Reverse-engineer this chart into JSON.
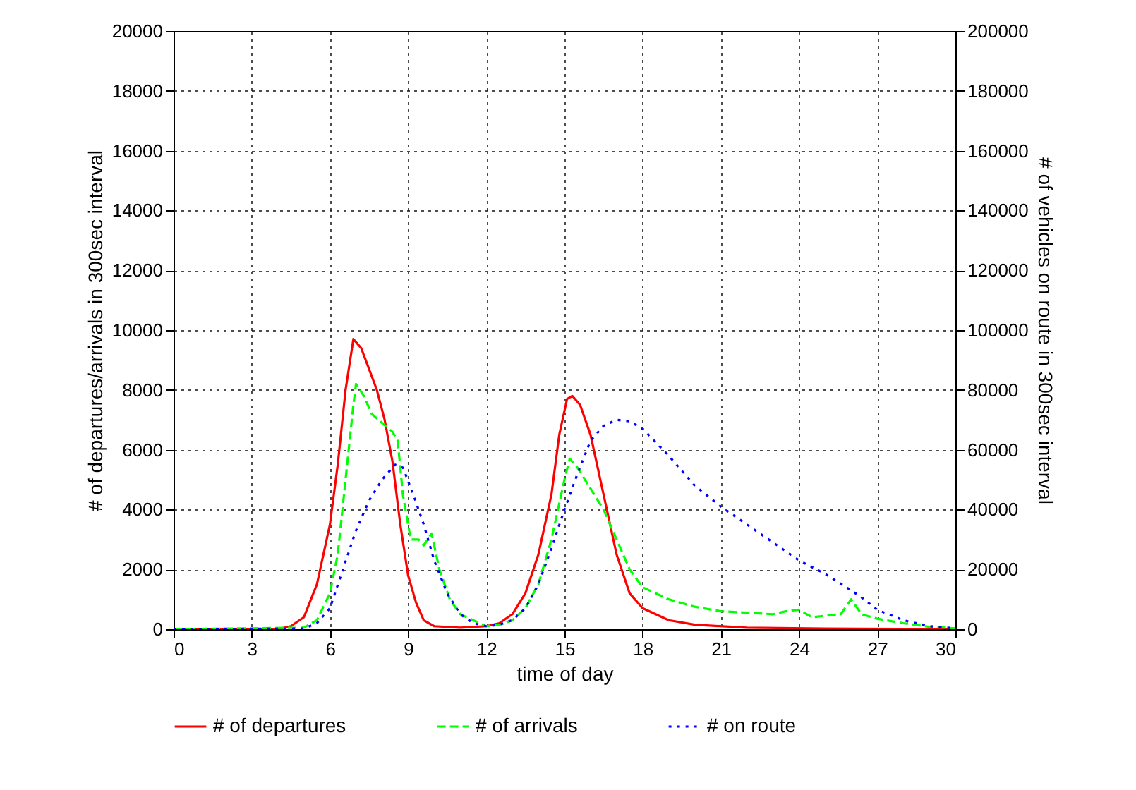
{
  "chart_data": {
    "type": "line",
    "xlabel": "time of day",
    "ylabel": "# of departures/arrivals in 300sec interval",
    "y2label": "# of vehicles on route in 300sec interval",
    "xlim": [
      0,
      30
    ],
    "xticks": [
      0,
      3,
      6,
      9,
      12,
      15,
      18,
      21,
      24,
      27,
      30
    ],
    "ylim": [
      0,
      20000
    ],
    "yticks": [
      0,
      2000,
      4000,
      6000,
      8000,
      10000,
      12000,
      14000,
      16000,
      18000,
      20000
    ],
    "y2lim": [
      0,
      200000
    ],
    "y2ticks": [
      0,
      20000,
      40000,
      60000,
      80000,
      100000,
      120000,
      140000,
      160000,
      180000,
      200000
    ],
    "grid": true,
    "legend": "bottom",
    "marker": "none",
    "series": [
      {
        "name": "# of departures",
        "color": "#ff0000",
        "line_style": "solid",
        "x": [
          0,
          4,
          4.5,
          5,
          5.5,
          6,
          6.3,
          6.6,
          6.9,
          7.2,
          7.5,
          7.8,
          8.1,
          8.4,
          8.7,
          9,
          9.3,
          9.6,
          10,
          11,
          12,
          12.5,
          13,
          13.5,
          14,
          14.5,
          14.8,
          15.1,
          15.3,
          15.6,
          16,
          16.5,
          17,
          17.5,
          18,
          19,
          20,
          22,
          25,
          30
        ],
        "values": [
          0,
          0,
          100,
          400,
          1500,
          3500,
          5500,
          8000,
          9700,
          9400,
          8700,
          8000,
          7000,
          5600,
          3500,
          1800,
          900,
          300,
          100,
          50,
          100,
          200,
          500,
          1200,
          2500,
          4500,
          6500,
          7700,
          7800,
          7500,
          6500,
          4500,
          2500,
          1200,
          700,
          300,
          150,
          50,
          20,
          0
        ]
      },
      {
        "name": "# of arrivals",
        "color": "#00ff00",
        "line_style": "dashed",
        "x": [
          0,
          5,
          5.5,
          6,
          6.3,
          6.6,
          6.9,
          7,
          7.3,
          7.6,
          8,
          8.4,
          8.6,
          8.8,
          9.1,
          9.4,
          9.6,
          9.9,
          10.2,
          10.6,
          11,
          12,
          12.5,
          13,
          13.5,
          14,
          14.5,
          15,
          15.2,
          15.5,
          16,
          16.5,
          17,
          17.5,
          18,
          19,
          20,
          21,
          22,
          23,
          23.5,
          24,
          24.5,
          25,
          25.6,
          26,
          26.4,
          27,
          28,
          29,
          30
        ],
        "values": [
          0,
          50,
          300,
          1200,
          2500,
          5000,
          7500,
          8200,
          7800,
          7200,
          6900,
          6600,
          6300,
          4500,
          3000,
          3000,
          2800,
          3200,
          2000,
          1000,
          500,
          100,
          150,
          300,
          700,
          1500,
          3000,
          5000,
          5700,
          5400,
          4700,
          4000,
          3000,
          2000,
          1400,
          1000,
          750,
          600,
          550,
          500,
          600,
          650,
          400,
          450,
          500,
          1000,
          500,
          350,
          200,
          80,
          30
        ]
      },
      {
        "name": "# on route",
        "color": "#0000ff",
        "line_style": "dotted",
        "axis": "y2",
        "x": [
          0,
          5,
          5.5,
          6,
          6.5,
          7,
          7.5,
          8,
          8.5,
          8.8,
          9.2,
          9.6,
          10,
          10.5,
          11,
          11.5,
          12,
          12.5,
          13,
          13.5,
          14,
          14.5,
          15,
          15.5,
          16,
          16.5,
          17,
          17.5,
          18,
          19,
          20,
          21,
          22,
          23,
          24,
          25,
          26,
          26.5,
          27,
          28,
          29,
          30
        ],
        "values": [
          0,
          200,
          2000,
          7000,
          20000,
          33000,
          43000,
          50000,
          55000,
          54000,
          45000,
          35000,
          23000,
          12000,
          5000,
          2000,
          1000,
          1500,
          3000,
          7000,
          15000,
          27000,
          40000,
          52000,
          63000,
          68000,
          70000,
          69500,
          67000,
          58000,
          48000,
          41000,
          35000,
          29000,
          23000,
          18500,
          13000,
          10000,
          6500,
          3000,
          1000,
          300
        ]
      }
    ]
  }
}
